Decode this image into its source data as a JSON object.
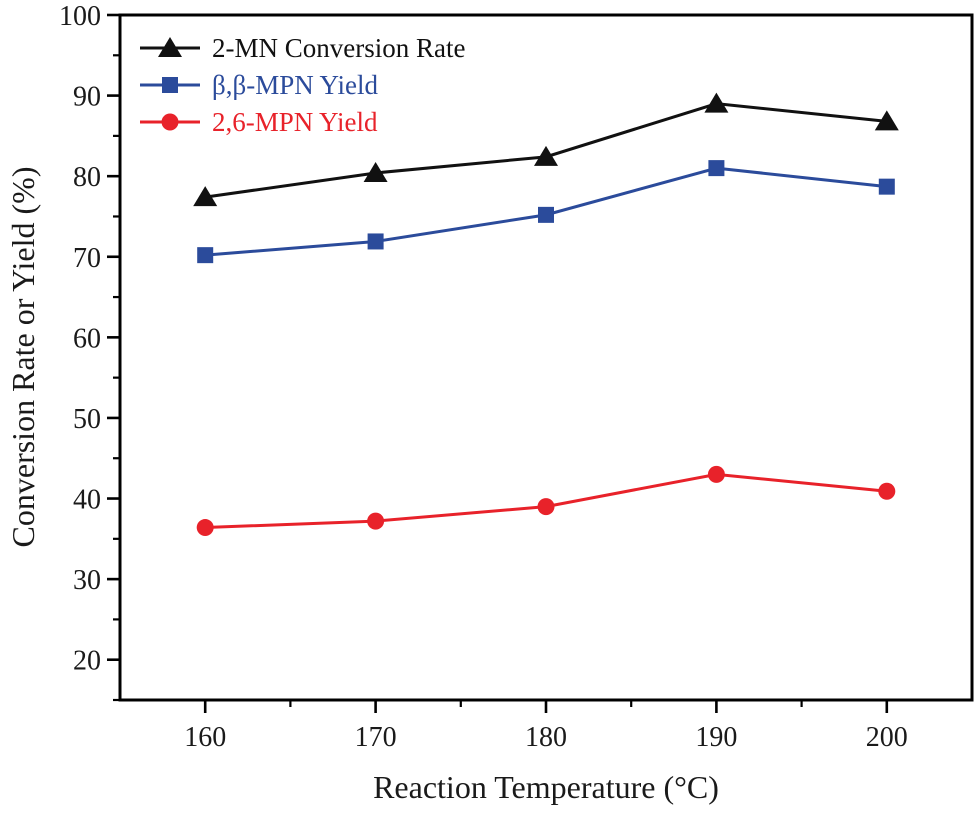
{
  "figure": {
    "background": "#ffffff",
    "frame_color": "#000000"
  },
  "chart_data": {
    "type": "line",
    "title": "",
    "xlabel": "Reaction Temperature (°C)",
    "ylabel": "Conversion Rate or Yield (%)",
    "xlim": [
      155,
      205
    ],
    "ylim": [
      15,
      100
    ],
    "grid": false,
    "legend_position": "top-left",
    "x": [
      160,
      170,
      180,
      190,
      200
    ],
    "x_major_ticks": [
      160,
      170,
      180,
      190,
      200
    ],
    "x_minor_ticks": [
      165,
      175,
      185,
      195
    ],
    "y_major_ticks": [
      20,
      30,
      40,
      50,
      60,
      70,
      80,
      90,
      100
    ],
    "y_minor_ticks": [
      15,
      25,
      35,
      45,
      55,
      65,
      75,
      85,
      95
    ],
    "series": [
      {
        "name": "2-MN Conversion Rate",
        "color": "#111111",
        "marker": "triangle",
        "values": [
          77.4,
          80.4,
          82.4,
          89.0,
          86.8
        ]
      },
      {
        "name": "β,β-MPN Yield",
        "color": "#2b4b9b",
        "marker": "square",
        "values": [
          70.2,
          71.9,
          75.2,
          81.0,
          78.7
        ]
      },
      {
        "name": "2,6-MPN Yield",
        "color": "#e8222a",
        "marker": "circle",
        "values": [
          36.4,
          37.2,
          39.0,
          43.0,
          40.9
        ]
      }
    ]
  }
}
